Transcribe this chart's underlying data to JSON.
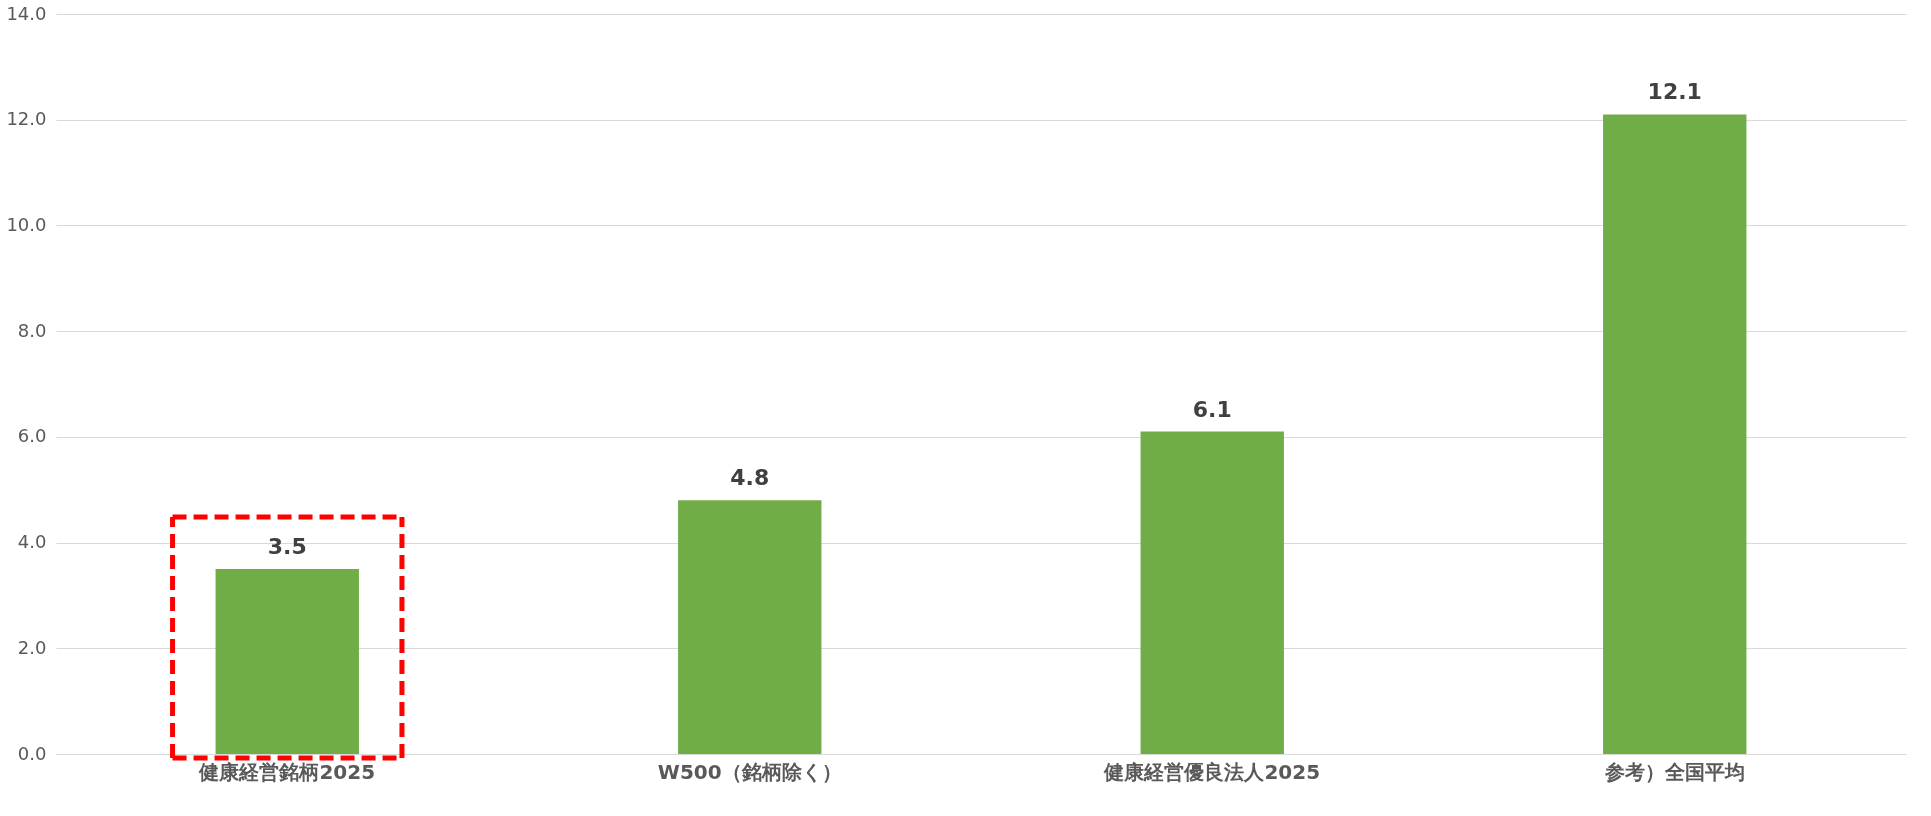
{
  "chart_data": {
    "type": "bar",
    "categories": [
      "健康経営銘柄2025",
      "W500（銘柄除く）",
      "健康経営優良法人2025",
      "参考）全国平均"
    ],
    "values": [
      3.5,
      4.8,
      6.1,
      12.1
    ],
    "color": "#70ad47",
    "ylim": [
      0,
      14
    ],
    "yticks": [
      {
        "value": 0,
        "label": "0.0"
      },
      {
        "value": 2,
        "label": "2.0"
      },
      {
        "value": 4,
        "label": "4.0"
      },
      {
        "value": 6,
        "label": "6.0"
      },
      {
        "value": 8,
        "label": "8.0"
      },
      {
        "value": 10,
        "label": "10.0"
      },
      {
        "value": 12,
        "label": "12.0"
      },
      {
        "value": 14,
        "label": "14.0"
      }
    ],
    "grid": "y",
    "data_labels": true
  }
}
